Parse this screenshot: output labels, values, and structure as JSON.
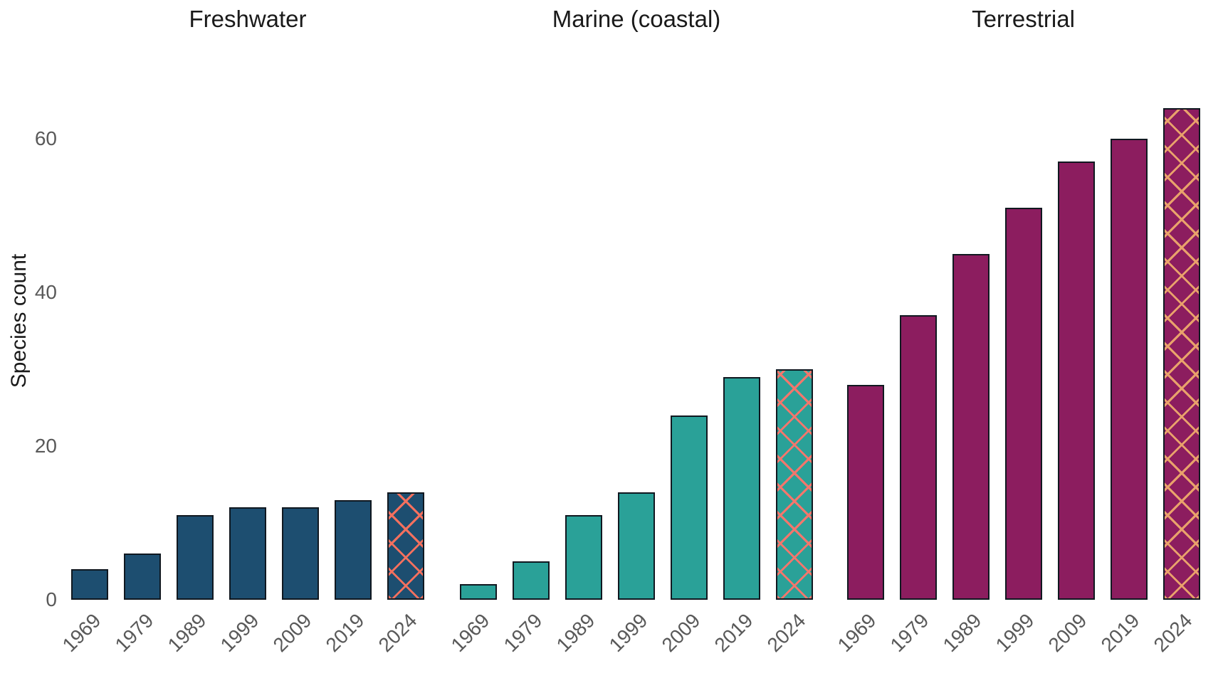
{
  "chart_data": {
    "type": "bar",
    "title": "",
    "xlabel": "",
    "ylabel": "Species count",
    "categories": [
      "1969",
      "1979",
      "1989",
      "1999",
      "2009",
      "2019",
      "2024"
    ],
    "y_ticks": [
      0,
      20,
      40,
      60
    ],
    "ylim": [
      0,
      66
    ],
    "grid": false,
    "legend_position": "none",
    "hatched_category": "2024",
    "hatch_pattern": "diagonal-crosshatch",
    "facets": [
      {
        "label": "Freshwater",
        "bar_color": "#1d4e70",
        "hatch_color": "#f4705e",
        "values": [
          4,
          6,
          11,
          12,
          12,
          13,
          14
        ]
      },
      {
        "label": "Marine (coastal)",
        "bar_color": "#2aa198",
        "hatch_color": "#f4766c",
        "values": [
          2,
          5,
          11,
          14,
          24,
          29,
          30
        ]
      },
      {
        "label": "Terrestrial",
        "bar_color": "#8c1d5f",
        "hatch_color": "#e9a26b",
        "values": [
          28,
          37,
          45,
          51,
          57,
          60,
          64
        ]
      }
    ],
    "bar_outline_color": "#101820",
    "tick_text_color": "#595959",
    "title_text_color": "#1a1a1a"
  }
}
